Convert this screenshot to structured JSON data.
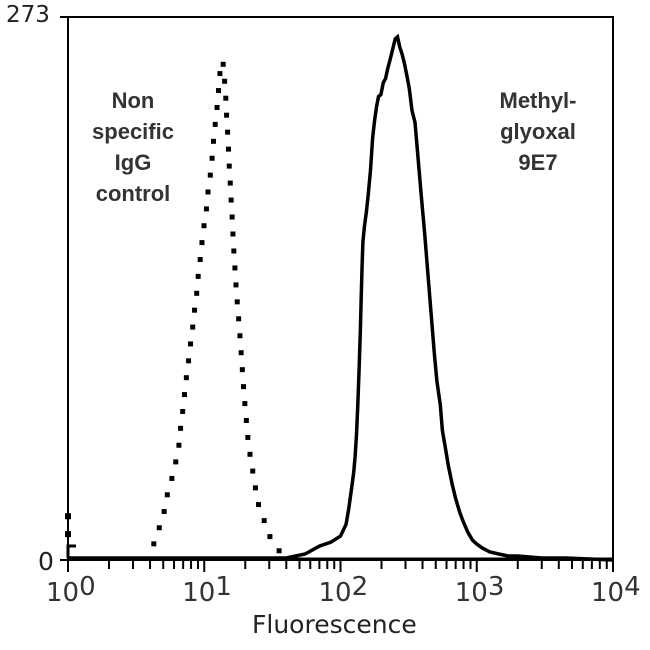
{
  "chart_data": {
    "type": "line",
    "title": "",
    "xlabel": "Fluorescence",
    "ylabel": "",
    "xscale": "log",
    "xlim": [
      1,
      10000
    ],
    "ylim": [
      0,
      273
    ],
    "x_ticks": [
      {
        "base": "10",
        "exp": "0",
        "value": 1
      },
      {
        "base": "10",
        "exp": "1",
        "value": 10
      },
      {
        "base": "10",
        "exp": "2",
        "value": 100
      },
      {
        "base": "10",
        "exp": "3",
        "value": 1000
      },
      {
        "base": "10",
        "exp": "4",
        "value": 10000
      }
    ],
    "y_ticks": [
      {
        "label": "273",
        "value": 273
      },
      {
        "label": "0",
        "value": 0
      }
    ],
    "grid": false,
    "legend": "inline annotations",
    "annotations": [
      {
        "lines": [
          "Non",
          "specific",
          "IgG",
          "control"
        ],
        "series": "Non specific IgG control"
      },
      {
        "lines": [
          "Methyl-",
          "glyoxal",
          "9E7"
        ],
        "series": "Methylglyoxal 9E7"
      }
    ],
    "series": [
      {
        "name": "Non specific IgG control",
        "style": "dotted",
        "color": "#000000",
        "points": [
          [
            3.9,
            0
          ],
          [
            4.4,
            11
          ],
          [
            5.0,
            22
          ],
          [
            5.4,
            34
          ],
          [
            5.7,
            39
          ],
          [
            6.1,
            48
          ],
          [
            6.4,
            53
          ],
          [
            6.6,
            61
          ],
          [
            6.8,
            71
          ],
          [
            7.0,
            76
          ],
          [
            7.2,
            85
          ],
          [
            7.4,
            92
          ],
          [
            7.6,
            98
          ],
          [
            7.8,
            104
          ],
          [
            8.0,
            111
          ],
          [
            8.3,
            119
          ],
          [
            8.5,
            126
          ],
          [
            8.8,
            134
          ],
          [
            9.0,
            142
          ],
          [
            9.3,
            150
          ],
          [
            9.6,
            159
          ],
          [
            9.9,
            167
          ],
          [
            10.3,
            174
          ],
          [
            10.6,
            184
          ],
          [
            11.0,
            192
          ],
          [
            11.3,
            198
          ],
          [
            11.6,
            208
          ],
          [
            11.9,
            216
          ],
          [
            12.4,
            227
          ],
          [
            13.2,
            249
          ],
          [
            13.7,
            251
          ],
          [
            14.1,
            241
          ],
          [
            14.4,
            232
          ],
          [
            14.6,
            223
          ],
          [
            14.9,
            213
          ],
          [
            15.1,
            205
          ],
          [
            15.3,
            196
          ],
          [
            15.6,
            187
          ],
          [
            15.8,
            179
          ],
          [
            16.1,
            170
          ],
          [
            16.3,
            161
          ],
          [
            16.6,
            152
          ],
          [
            16.9,
            144
          ],
          [
            17.2,
            135
          ],
          [
            17.6,
            127
          ],
          [
            18.0,
            119
          ],
          [
            18.4,
            110
          ],
          [
            18.8,
            101
          ],
          [
            19.2,
            92
          ],
          [
            19.6,
            83
          ],
          [
            20.1,
            75
          ],
          [
            20.6,
            66
          ],
          [
            21.2,
            57
          ],
          [
            22.3,
            48
          ],
          [
            23.5,
            38
          ],
          [
            25.0,
            28
          ],
          [
            27.8,
            19
          ],
          [
            31.0,
            10
          ],
          [
            36.0,
            4
          ],
          [
            45.0,
            1
          ]
        ]
      },
      {
        "name": "Methylglyoxal 9E7",
        "style": "solid",
        "color": "#000000",
        "points": [
          [
            1,
            1
          ],
          [
            30,
            1
          ],
          [
            40,
            1
          ],
          [
            55,
            3
          ],
          [
            70,
            7
          ],
          [
            85,
            9
          ],
          [
            100,
            12
          ],
          [
            110,
            18
          ],
          [
            115,
            26
          ],
          [
            120,
            35
          ],
          [
            125,
            44
          ],
          [
            128,
            52
          ],
          [
            131,
            63
          ],
          [
            134,
            78
          ],
          [
            137,
            96
          ],
          [
            140,
            116
          ],
          [
            142,
            132
          ],
          [
            144,
            148
          ],
          [
            146,
            160
          ],
          [
            150,
            168
          ],
          [
            155,
            175
          ],
          [
            160,
            184
          ],
          [
            166,
            196
          ],
          [
            172,
            212
          ],
          [
            178,
            221
          ],
          [
            184,
            228
          ],
          [
            190,
            233
          ],
          [
            198,
            234
          ],
          [
            206,
            240
          ],
          [
            214,
            242
          ],
          [
            222,
            247
          ],
          [
            230,
            251
          ],
          [
            240,
            256
          ],
          [
            252,
            262
          ],
          [
            262,
            263
          ],
          [
            272,
            258
          ],
          [
            284,
            254
          ],
          [
            296,
            249
          ],
          [
            308,
            243
          ],
          [
            320,
            237
          ],
          [
            335,
            226
          ],
          [
            352,
            220
          ],
          [
            370,
            203
          ],
          [
            392,
            183
          ],
          [
            415,
            164
          ],
          [
            440,
            142
          ],
          [
            462,
            124
          ],
          [
            488,
            104
          ],
          [
            510,
            90
          ],
          [
            540,
            78
          ],
          [
            560,
            65
          ],
          [
            590,
            56
          ],
          [
            620,
            47
          ],
          [
            660,
            38
          ],
          [
            700,
            31
          ],
          [
            750,
            24
          ],
          [
            800,
            19
          ],
          [
            860,
            14
          ],
          [
            930,
            10
          ],
          [
            1000,
            8
          ],
          [
            1100,
            6
          ],
          [
            1250,
            4
          ],
          [
            1450,
            3
          ],
          [
            1700,
            2
          ],
          [
            2000,
            2
          ],
          [
            3000,
            1
          ],
          [
            4500,
            1
          ],
          [
            10000,
            0
          ]
        ]
      }
    ],
    "baseline_markers": {
      "y_axis_points_y": [
        13,
        36,
        20
      ],
      "note": "small cluster of marks at x=10^0 near baseline"
    }
  }
}
